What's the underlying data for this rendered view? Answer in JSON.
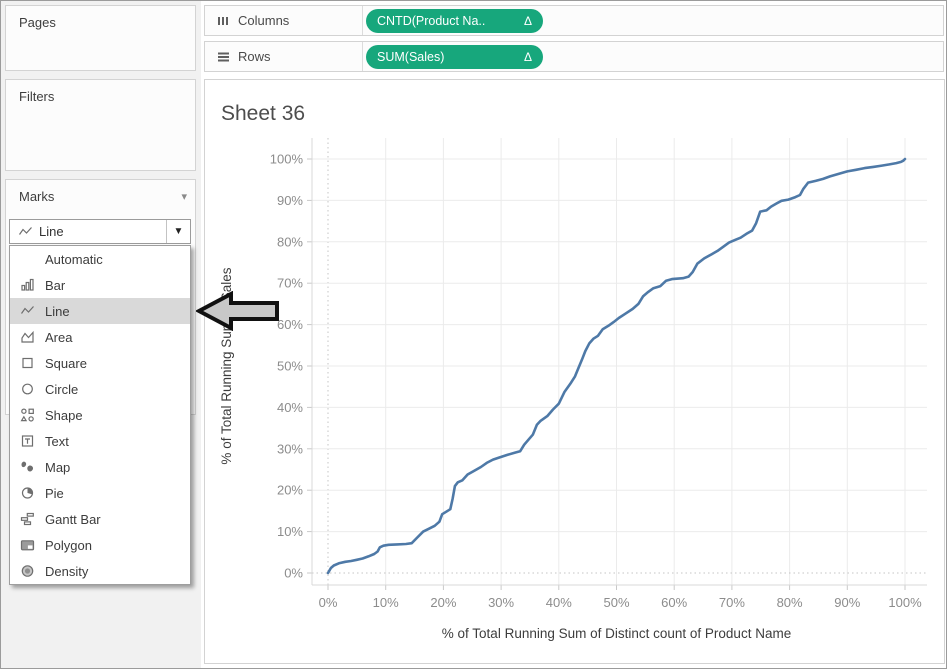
{
  "sidebar": {
    "pages": {
      "label": "Pages"
    },
    "filters": {
      "label": "Filters"
    },
    "marks": {
      "label": "Marks",
      "dropdown_value": "Line",
      "menu": [
        {
          "label": "Automatic",
          "icon": null,
          "selected": false
        },
        {
          "label": "Bar",
          "icon": "bar",
          "selected": false
        },
        {
          "label": "Line",
          "icon": "line",
          "selected": true
        },
        {
          "label": "Area",
          "icon": "area",
          "selected": false
        },
        {
          "label": "Square",
          "icon": "square",
          "selected": false
        },
        {
          "label": "Circle",
          "icon": "circle",
          "selected": false
        },
        {
          "label": "Shape",
          "icon": "shape",
          "selected": false
        },
        {
          "label": "Text",
          "icon": "text",
          "selected": false
        },
        {
          "label": "Map",
          "icon": "map",
          "selected": false
        },
        {
          "label": "Pie",
          "icon": "pie",
          "selected": false
        },
        {
          "label": "Gantt Bar",
          "icon": "gantt-bar",
          "selected": false
        },
        {
          "label": "Polygon",
          "icon": "polygon",
          "selected": false
        },
        {
          "label": "Density",
          "icon": "density",
          "selected": false
        }
      ]
    }
  },
  "shelves": {
    "columns": {
      "label": "Columns",
      "pill": {
        "text": "CNTD(Product Na..",
        "delta": "Δ",
        "color": "#17a77c"
      }
    },
    "rows": {
      "label": "Rows",
      "pill": {
        "text": "SUM(Sales)",
        "delta": "Δ",
        "color": "#17a77c"
      }
    }
  },
  "chart_data": {
    "type": "line",
    "title": "Sheet 36",
    "xlabel": "% of Total Running Sum of Distinct count of Product Name",
    "ylabel": "% of Total Running Sum of Sales",
    "xlim": [
      0,
      100
    ],
    "ylim": [
      0,
      100
    ],
    "x_ticks": [
      "0%",
      "10%",
      "20%",
      "30%",
      "40%",
      "50%",
      "60%",
      "70%",
      "80%",
      "90%",
      "100%"
    ],
    "y_ticks": [
      "0%",
      "10%",
      "20%",
      "30%",
      "40%",
      "50%",
      "60%",
      "70%",
      "80%",
      "90%",
      "100%"
    ],
    "grid": true,
    "legend": "none",
    "line_color": "#4e79a7",
    "points": [
      [
        0,
        0
      ],
      [
        0.5,
        1.2
      ],
      [
        1,
        1.8
      ],
      [
        2,
        2.4
      ],
      [
        3,
        2.7
      ],
      [
        4,
        2.9
      ],
      [
        5,
        3.2
      ],
      [
        6,
        3.5
      ],
      [
        7,
        4.0
      ],
      [
        8,
        4.6
      ],
      [
        8.6,
        5.2
      ],
      [
        9,
        6.2
      ],
      [
        9.6,
        6.6
      ],
      [
        10.5,
        6.8
      ],
      [
        12,
        6.9
      ],
      [
        13.5,
        7.0
      ],
      [
        14.5,
        7.2
      ],
      [
        15.5,
        8.6
      ],
      [
        16.5,
        10.0
      ],
      [
        17.5,
        10.7
      ],
      [
        18.5,
        11.4
      ],
      [
        19.3,
        12.4
      ],
      [
        19.8,
        14.2
      ],
      [
        20.6,
        14.9
      ],
      [
        21.2,
        15.4
      ],
      [
        21.6,
        17.9
      ],
      [
        22.0,
        21.0
      ],
      [
        22.5,
        21.9
      ],
      [
        23.3,
        22.4
      ],
      [
        24.2,
        23.8
      ],
      [
        25.2,
        24.6
      ],
      [
        26.5,
        25.6
      ],
      [
        27.5,
        26.6
      ],
      [
        28.6,
        27.4
      ],
      [
        29.5,
        27.8
      ],
      [
        31,
        28.5
      ],
      [
        32.5,
        29.1
      ],
      [
        33.3,
        29.4
      ],
      [
        34,
        31.0
      ],
      [
        34.8,
        32.3
      ],
      [
        35.5,
        33.4
      ],
      [
        36.2,
        35.8
      ],
      [
        36.8,
        36.7
      ],
      [
        38,
        37.9
      ],
      [
        39,
        39.5
      ],
      [
        40,
        40.9
      ],
      [
        41,
        43.8
      ],
      [
        42,
        45.7
      ],
      [
        42.8,
        47.5
      ],
      [
        43.4,
        49.5
      ],
      [
        44,
        51.5
      ],
      [
        44.6,
        53.6
      ],
      [
        45.3,
        55.5
      ],
      [
        46,
        56.6
      ],
      [
        46.8,
        57.3
      ],
      [
        47.6,
        58.9
      ],
      [
        48.6,
        59.7
      ],
      [
        49.5,
        60.6
      ],
      [
        50.4,
        61.6
      ],
      [
        51.5,
        62.6
      ],
      [
        52.8,
        63.8
      ],
      [
        53.8,
        65.0
      ],
      [
        54.6,
        66.8
      ],
      [
        55.4,
        67.8
      ],
      [
        56.4,
        68.8
      ],
      [
        57.6,
        69.3
      ],
      [
        58.6,
        70.6
      ],
      [
        59.6,
        71.0
      ],
      [
        61.5,
        71.2
      ],
      [
        62.5,
        71.6
      ],
      [
        63.2,
        72.7
      ],
      [
        64,
        74.7
      ],
      [
        65.2,
        76.0
      ],
      [
        66.5,
        77.0
      ],
      [
        67.5,
        77.8
      ],
      [
        68.5,
        78.8
      ],
      [
        69.5,
        79.8
      ],
      [
        70.5,
        80.4
      ],
      [
        71.5,
        81.0
      ],
      [
        72.5,
        81.9
      ],
      [
        73.5,
        82.7
      ],
      [
        74.2,
        84.5
      ],
      [
        74.9,
        87.3
      ],
      [
        76,
        87.6
      ],
      [
        76.8,
        88.5
      ],
      [
        77.8,
        89.3
      ],
      [
        78.6,
        89.9
      ],
      [
        79.8,
        90.2
      ],
      [
        81,
        90.8
      ],
      [
        81.8,
        91.3
      ],
      [
        82.4,
        92.8
      ],
      [
        83.2,
        94.3
      ],
      [
        84.5,
        94.7
      ],
      [
        85.8,
        95.2
      ],
      [
        87,
        95.8
      ],
      [
        88.5,
        96.4
      ],
      [
        90,
        97.0
      ],
      [
        91.5,
        97.4
      ],
      [
        93,
        97.8
      ],
      [
        94.5,
        98.1
      ],
      [
        96,
        98.4
      ],
      [
        97.3,
        98.7
      ],
      [
        98.5,
        99.0
      ],
      [
        99.3,
        99.3
      ],
      [
        99.7,
        99.6
      ],
      [
        100,
        100
      ]
    ]
  },
  "annotation_arrow": {
    "direction": "left",
    "fill": "#c8c8c8",
    "stroke": "#111111"
  }
}
